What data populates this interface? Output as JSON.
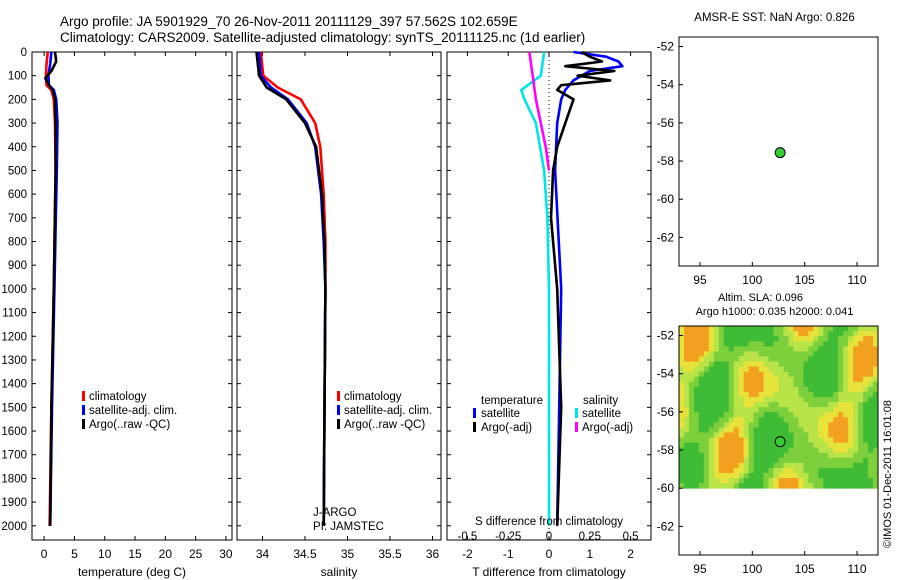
{
  "header": {
    "line1": "Argo profile: JA 5901929_70 26-Nov-2011 20111129_397 57.562S 102.659E",
    "line2": "Climatology: CARS2009. Satellite-adjusted climatology: synTS_20111125.nc (1d earlier)"
  },
  "colors": {
    "climatology": "#ff0000",
    "satellite": "#0000ff",
    "argo": "#000000",
    "sat_salinity": "#00e5e5",
    "argo_salinity": "#ff00ff",
    "float_marker": "#33cc33"
  },
  "chart_data": [
    {
      "id": "temperature",
      "type": "line",
      "xlabel": "temperature (deg C)",
      "ylabel": "",
      "xlim": [
        -2,
        31
      ],
      "ylim": [
        2060,
        0
      ],
      "xticks": [
        0,
        5,
        10,
        15,
        20,
        25,
        30
      ],
      "yticks": [
        0,
        100,
        200,
        300,
        400,
        500,
        600,
        700,
        800,
        900,
        1000,
        1100,
        1200,
        1300,
        1400,
        1500,
        1600,
        1700,
        1800,
        1900,
        2000
      ],
      "legend": [
        "climatology",
        "satellite-adj. clim.",
        "Argo(..raw -QC)"
      ],
      "series": [
        {
          "name": "climatology",
          "color": "#ff0000",
          "depth": [
            0,
            50,
            100,
            140,
            160,
            200,
            300,
            500,
            1000,
            1500,
            2000
          ],
          "values": [
            0.6,
            0.4,
            0.3,
            0.4,
            1.2,
            1.6,
            1.8,
            1.9,
            1.6,
            1.2,
            0.9
          ]
        },
        {
          "name": "satellite-adj. clim.",
          "color": "#0000ff",
          "depth": [
            0,
            50,
            100,
            140,
            160,
            200,
            300,
            500,
            1000,
            1500,
            2000
          ],
          "values": [
            1.2,
            1.0,
            0.7,
            0.8,
            1.6,
            2.0,
            2.2,
            2.1,
            1.7,
            1.3,
            1.0
          ]
        },
        {
          "name": "Argo(..raw -QC)",
          "color": "#000000",
          "depth": [
            0,
            40,
            80,
            110,
            140,
            160,
            200,
            300,
            500,
            1000,
            1500,
            2000
          ],
          "values": [
            1.8,
            2.0,
            1.2,
            0.2,
            0.8,
            1.4,
            1.8,
            1.9,
            1.9,
            1.6,
            1.2,
            1.0
          ]
        }
      ]
    },
    {
      "id": "salinity",
      "type": "line",
      "xlabel": "salinity",
      "ylabel": "",
      "xlim": [
        33.7,
        36.1
      ],
      "ylim": [
        2060,
        0
      ],
      "xticks": [
        34,
        34.5,
        35,
        35.5,
        36
      ],
      "xticklabels": [
        "34",
        "34.5",
        "35",
        "35.5",
        "36"
      ],
      "legend": [
        "climatology",
        "satellite-adj. clim.",
        "Argo(..raw -QC)"
      ],
      "annotation": [
        "J-ARGO",
        "PI: JAMSTEC"
      ],
      "series": [
        {
          "name": "climatology",
          "color": "#ff0000",
          "depth": [
            0,
            100,
            150,
            200,
            300,
            400,
            600,
            800,
            1000,
            1500,
            2000
          ],
          "values": [
            33.98,
            34.01,
            34.18,
            34.45,
            34.62,
            34.68,
            34.72,
            34.74,
            34.74,
            34.73,
            34.72
          ]
        },
        {
          "name": "satellite-adj. clim.",
          "color": "#0000ff",
          "depth": [
            0,
            100,
            150,
            200,
            300,
            400,
            600,
            800,
            1000,
            1500,
            2000
          ],
          "values": [
            33.96,
            33.98,
            34.1,
            34.3,
            34.52,
            34.62,
            34.69,
            34.72,
            34.74,
            34.73,
            34.72
          ]
        },
        {
          "name": "Argo(..raw -QC)",
          "color": "#000000",
          "depth": [
            0,
            100,
            150,
            200,
            300,
            400,
            600,
            800,
            1000,
            1500,
            2000
          ],
          "values": [
            33.93,
            33.96,
            34.05,
            34.28,
            34.5,
            34.63,
            34.7,
            34.73,
            34.74,
            34.73,
            34.72
          ]
        }
      ]
    },
    {
      "id": "difference",
      "type": "line",
      "xlabel": "T difference from climatology",
      "xlabel2": "S difference from climatology",
      "xlim": [
        -2.5,
        2.5
      ],
      "ylim": [
        2060,
        0
      ],
      "xticks": [
        -2,
        -1,
        0,
        1,
        2
      ],
      "xticks2": [
        -0.5,
        -0.25,
        0,
        0.25,
        0.5
      ],
      "x2lim": [
        -0.625,
        0.625
      ],
      "legend_temperature_title": "temperature",
      "legend_salinity_title": "salinity",
      "legend_temperature": [
        "satellite",
        "Argo(-adj)"
      ],
      "legend_salinity": [
        "satellite",
        "Argo(-adj)"
      ],
      "series": [
        {
          "name": "temperature satellite",
          "color": "#0000ff",
          "depth": [
            0,
            20,
            40,
            60,
            80,
            100,
            120,
            140,
            160,
            200,
            300,
            500,
            1000,
            1500,
            2000
          ],
          "values": [
            0.6,
            1.4,
            1.7,
            1.8,
            1.0,
            0.8,
            0.6,
            0.5,
            0.4,
            0.3,
            0.2,
            0.15,
            0.3,
            0.25,
            0.2
          ]
        },
        {
          "name": "temperature Argo(-adj)",
          "color": "#000000",
          "depth": [
            0,
            20,
            40,
            60,
            80,
            100,
            120,
            140,
            160,
            200,
            300,
            400,
            500,
            700,
            1000,
            1500,
            2000
          ],
          "values": [
            0.8,
            1.0,
            1.3,
            0.4,
            1.6,
            0.7,
            1.5,
            0.3,
            0.2,
            0.6,
            0.4,
            0.2,
            0.1,
            0.05,
            0.2,
            0.3,
            0.2
          ]
        },
        {
          "name": "salinity satellite",
          "color": "#00e5e5",
          "depth": [
            0,
            50,
            100,
            160,
            200,
            300,
            500,
            700,
            1000,
            1500,
            2000
          ],
          "values": [
            -0.03,
            -0.04,
            -0.05,
            -0.17,
            -0.15,
            -0.08,
            -0.03,
            -0.01,
            0.0,
            0.0,
            0.0
          ]
        },
        {
          "name": "salinity Argo(-adj)",
          "color": "#ff00ff",
          "depth": [
            0,
            50,
            100,
            150,
            200,
            300,
            400,
            500
          ],
          "values": [
            -0.12,
            -0.11,
            -0.1,
            -0.09,
            -0.08,
            -0.05,
            -0.02,
            0.0
          ]
        }
      ]
    },
    {
      "id": "sst_map",
      "type": "scatter",
      "title": "AMSR-E SST: NaN Argo: 0.826",
      "xlim": [
        93,
        112
      ],
      "ylim": [
        -63.5,
        -51.5
      ],
      "xticks": [
        95,
        100,
        105,
        110
      ],
      "yticks": [
        -52,
        -54,
        -56,
        -58,
        -60,
        -62
      ],
      "points": [
        {
          "x": 102.659,
          "y": -57.562
        }
      ]
    },
    {
      "id": "sla_map",
      "type": "heatmap",
      "title1": "Altim. SLA: 0.096",
      "title2": "Argo h1000: 0.035 h2000: 0.041",
      "xlim": [
        93,
        112
      ],
      "ylim": [
        -63.5,
        -51.5
      ],
      "xticks": [
        95,
        100,
        105,
        110
      ],
      "yticks": [
        -52,
        -54,
        -56,
        -58,
        -60,
        -62
      ],
      "data_extent": {
        "lon": [
          93,
          112
        ],
        "lat": [
          -60,
          -51.5
        ]
      },
      "points": [
        {
          "x": 102.659,
          "y": -57.562
        }
      ]
    }
  ],
  "footer": {
    "imos_stamp": "©IMOS 01-Dec-2011 16:01:08"
  }
}
